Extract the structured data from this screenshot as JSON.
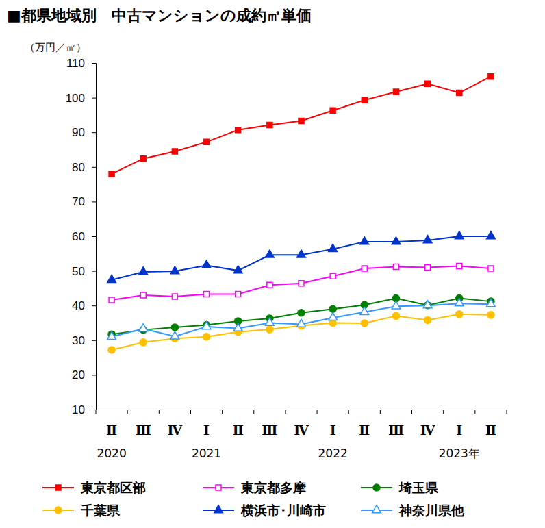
{
  "chart_data": {
    "type": "line",
    "title": "■都県地域別　中古マンションの成約㎡単価",
    "y_label": "（万円／㎡）",
    "categories": [
      "Ⅱ",
      "Ⅲ",
      "Ⅳ",
      "Ⅰ",
      "Ⅱ",
      "Ⅲ",
      "Ⅳ",
      "Ⅰ",
      "Ⅱ",
      "Ⅲ",
      "Ⅳ",
      "Ⅰ",
      "Ⅱ"
    ],
    "x_years": [
      "2020",
      null,
      null,
      "2021",
      null,
      null,
      null,
      "2022",
      null,
      null,
      null,
      "2023年",
      null
    ],
    "ylim": [
      10,
      110
    ],
    "yticks": [
      10,
      20,
      30,
      40,
      50,
      60,
      70,
      80,
      90,
      100,
      110
    ],
    "grid": false,
    "legend": "bottom",
    "series": [
      {
        "name": "東京都区部",
        "color": "#ff0000",
        "marker": "square",
        "values": [
          78.0,
          82.4,
          84.5,
          87.2,
          90.7,
          92.1,
          93.3,
          96.3,
          99.3,
          101.7,
          104.0,
          101.4,
          106.1
        ]
      },
      {
        "name": "東京都多摩",
        "color": "#ff00ff",
        "marker": "square-open",
        "values": [
          41.6,
          43.0,
          42.6,
          43.3,
          43.3,
          45.9,
          46.4,
          48.5,
          50.7,
          51.2,
          51.0,
          51.4,
          50.7
        ]
      },
      {
        "name": "埼玉県",
        "color": "#008000",
        "marker": "circle",
        "values": [
          31.7,
          33.0,
          33.7,
          34.4,
          35.5,
          36.3,
          37.9,
          39.0,
          40.2,
          42.1,
          40.1,
          42.1,
          41.2
        ]
      },
      {
        "name": "千葉県",
        "color": "#ffc000",
        "marker": "circle",
        "values": [
          27.2,
          29.4,
          30.5,
          31.0,
          32.4,
          33.1,
          34.2,
          35.0,
          34.9,
          37.0,
          35.8,
          37.5,
          37.3
        ]
      },
      {
        "name": "横浜市･川崎市",
        "color": "#0033cc",
        "marker": "triangle",
        "values": [
          47.4,
          49.7,
          49.9,
          51.6,
          50.1,
          54.6,
          54.6,
          56.3,
          58.4,
          58.4,
          58.8,
          60.0,
          60.0
        ]
      },
      {
        "name": "神奈川県他",
        "color": "#3399ff",
        "marker": "triangle-open",
        "values": [
          31.0,
          33.3,
          31.1,
          33.9,
          33.4,
          35.0,
          34.6,
          36.5,
          38.1,
          39.8,
          40.0,
          40.6,
          40.4
        ]
      }
    ]
  }
}
